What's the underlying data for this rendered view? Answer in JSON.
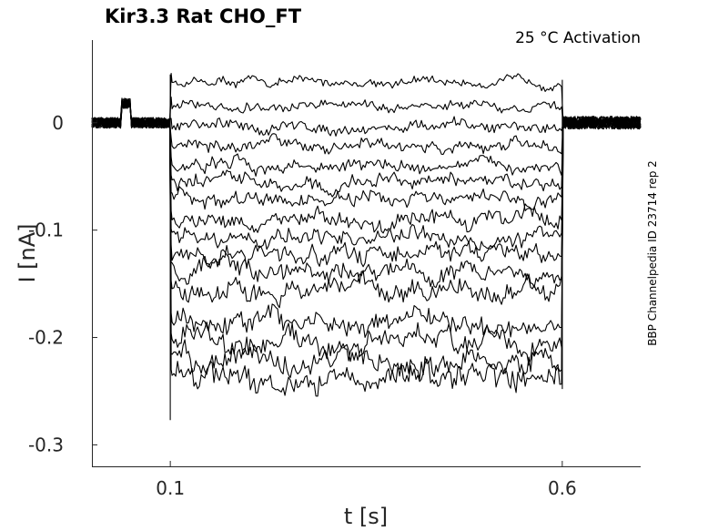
{
  "chart_data": {
    "type": "line",
    "title": "Kir3.3  Rat  CHO_FT",
    "subtitle": "25 °C  Activation",
    "side_label": "BBP Channelpedia ID 23714 rep 2",
    "xlabel": "t [s]",
    "ylabel": "I [nA]",
    "xlim": [
      0.0,
      0.7
    ],
    "ylim": [
      -0.32,
      0.077
    ],
    "xticks": [
      0.1,
      0.6
    ],
    "xtick_labels": [
      "0.1",
      "0.6"
    ],
    "yticks": [
      0,
      -0.1,
      -0.2,
      -0.3
    ],
    "ytick_labels": [
      "0",
      "-0.1",
      "-0.2",
      "-0.3"
    ],
    "grid": false,
    "stimulus_window": [
      0.1,
      0.6
    ],
    "baseline_current": 0.0,
    "series": [
      {
        "steady_state": 0.038
      },
      {
        "steady_state": 0.016
      },
      {
        "steady_state": -0.004
      },
      {
        "steady_state": -0.022
      },
      {
        "steady_state": -0.04
      },
      {
        "steady_state": -0.057
      },
      {
        "steady_state": -0.073
      },
      {
        "steady_state": -0.09
      },
      {
        "steady_state": -0.107
      },
      {
        "steady_state": -0.122
      },
      {
        "steady_state": -0.138
      },
      {
        "steady_state": -0.155
      },
      {
        "steady_state": -0.185
      },
      {
        "steady_state": -0.204
      },
      {
        "steady_state": -0.223
      },
      {
        "steady_state": -0.238
      }
    ]
  }
}
